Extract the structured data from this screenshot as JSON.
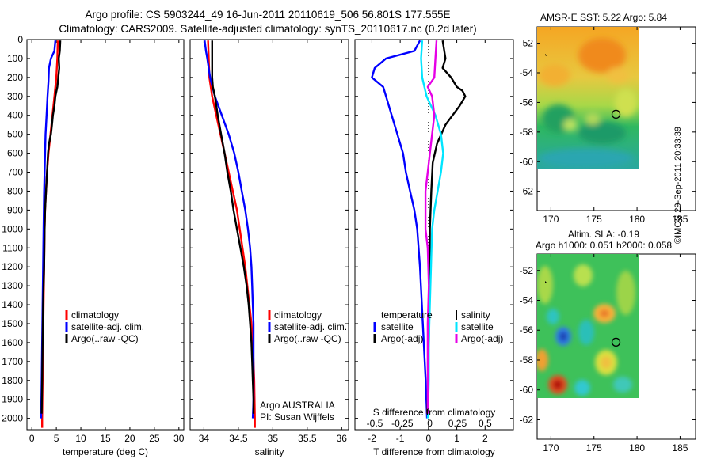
{
  "title_line1": "Argo profile: CS 5903244_49 16-Jun-2011 20110619_506 56.801S 177.555E",
  "title_line2": "Climatology: CARS2009. Satellite-adjusted climatology: synTS_20110617.nc (0.2d later)",
  "credit": "©IMOS 29-Sep-2011 20:33:39",
  "colors": {
    "climatology": "#ff0000",
    "satellite": "#0000ff",
    "argo": "#000000",
    "salinity_satellite": "#00e5ff",
    "salinity_argo": "#e600e6"
  },
  "chart_data": [
    {
      "type": "line",
      "name": "temperature-profile",
      "xlabel": "temperature (deg C)",
      "ylabel": "",
      "xlim": [
        -1,
        31
      ],
      "ylim": [
        2060,
        0
      ],
      "yticks": [
        0,
        100,
        200,
        300,
        400,
        500,
        600,
        700,
        800,
        900,
        1000,
        1100,
        1200,
        1300,
        1400,
        1500,
        1600,
        1700,
        1800,
        1900,
        2000
      ],
      "xticks": [
        0,
        5,
        10,
        15,
        20,
        25,
        30
      ],
      "legend": [
        "climatology",
        "satellite-adj. clim.",
        "Argo(..raw -QC)"
      ],
      "legend_position": "lower-center",
      "series": [
        {
          "name": "climatology",
          "color": "#ff0000",
          "points": [
            [
              5.3,
              5
            ],
            [
              5.2,
              100
            ],
            [
              5,
              200
            ],
            [
              4.6,
              300
            ],
            [
              4.2,
              400
            ],
            [
              3.8,
              500
            ],
            [
              3.4,
              600
            ],
            [
              3.1,
              700
            ],
            [
              2.9,
              800
            ],
            [
              2.7,
              900
            ],
            [
              2.6,
              1000
            ],
            [
              2.5,
              1200
            ],
            [
              2.4,
              1400
            ],
            [
              2.3,
              1600
            ],
            [
              2.2,
              1800
            ],
            [
              2.1,
              2000
            ],
            [
              2.1,
              2050
            ]
          ]
        },
        {
          "name": "satellite-adj. clim.",
          "color": "#0000ff",
          "points": [
            [
              4.8,
              5
            ],
            [
              4.6,
              60
            ],
            [
              3.9,
              100
            ],
            [
              3.5,
              150
            ],
            [
              3.4,
              220
            ],
            [
              3.2,
              300
            ],
            [
              3,
              400
            ],
            [
              2.8,
              500
            ],
            [
              2.7,
              600
            ],
            [
              2.6,
              700
            ],
            [
              2.5,
              800
            ],
            [
              2.4,
              1000
            ],
            [
              2.3,
              1200
            ],
            [
              2.2,
              1400
            ],
            [
              2.1,
              1600
            ],
            [
              2,
              1800
            ],
            [
              1.9,
              2000
            ]
          ]
        },
        {
          "name": "Argo(..raw -QC)",
          "color": "#000000",
          "points": [
            [
              5.8,
              5
            ],
            [
              5.7,
              60
            ],
            [
              5.5,
              100
            ],
            [
              5.6,
              150
            ],
            [
              5.4,
              200
            ],
            [
              5.2,
              250
            ],
            [
              4.8,
              300
            ],
            [
              4.6,
              350
            ],
            [
              4.3,
              400
            ],
            [
              4.1,
              450
            ],
            [
              3.9,
              500
            ],
            [
              3.5,
              550
            ],
            [
              3.3,
              600
            ],
            [
              3.1,
              700
            ],
            [
              2.9,
              800
            ],
            [
              2.7,
              900
            ],
            [
              2.6,
              1000
            ],
            [
              2.5,
              1200
            ],
            [
              2.3,
              1400
            ],
            [
              2.2,
              1600
            ],
            [
              2.1,
              1800
            ],
            [
              2,
              1975
            ]
          ]
        }
      ]
    },
    {
      "type": "line",
      "name": "salinity-profile",
      "xlabel": "salinity",
      "ylabel": "",
      "xlim": [
        33.8,
        36.1
      ],
      "ylim": [
        2060,
        0
      ],
      "xticks": [
        34,
        34.5,
        35,
        35.5,
        36
      ],
      "legend": [
        "climatology",
        "satellite-adj. clim.",
        "Argo(..raw -QC)"
      ],
      "legend_position": "lower-center",
      "annotations": [
        "Argo AUSTRALIA",
        "PI: Susan Wijffels"
      ],
      "series": [
        {
          "name": "climatology",
          "color": "#ff0000",
          "points": [
            [
              34.06,
              5
            ],
            [
              34.07,
              100
            ],
            [
              34.08,
              200
            ],
            [
              34.12,
              300
            ],
            [
              34.18,
              400
            ],
            [
              34.24,
              500
            ],
            [
              34.3,
              600
            ],
            [
              34.36,
              700
            ],
            [
              34.42,
              800
            ],
            [
              34.48,
              900
            ],
            [
              34.52,
              1000
            ],
            [
              34.56,
              1100
            ],
            [
              34.6,
              1200
            ],
            [
              34.63,
              1300
            ],
            [
              34.66,
              1400
            ],
            [
              34.69,
              1500
            ],
            [
              34.71,
              1600
            ],
            [
              34.72,
              1700
            ],
            [
              34.73,
              1800
            ],
            [
              34.735,
              1900
            ],
            [
              34.74,
              2000
            ],
            [
              34.74,
              2050
            ]
          ]
        },
        {
          "name": "satellite-adj. clim.",
          "color": "#0000ff",
          "points": [
            [
              34.01,
              5
            ],
            [
              34.03,
              60
            ],
            [
              34.05,
              100
            ],
            [
              34.09,
              200
            ],
            [
              34.16,
              300
            ],
            [
              34.26,
              400
            ],
            [
              34.36,
              500
            ],
            [
              34.44,
              600
            ],
            [
              34.5,
              700
            ],
            [
              34.55,
              800
            ],
            [
              34.6,
              900
            ],
            [
              34.64,
              1000
            ],
            [
              34.67,
              1100
            ],
            [
              34.69,
              1200
            ],
            [
              34.7,
              1300
            ],
            [
              34.71,
              1400
            ],
            [
              34.72,
              1500
            ],
            [
              34.72,
              1600
            ],
            [
              34.72,
              1700
            ],
            [
              34.72,
              1800
            ],
            [
              34.72,
              1900
            ],
            [
              34.71,
              2000
            ]
          ]
        },
        {
          "name": "Argo(..raw -QC)",
          "color": "#000000",
          "points": [
            [
              34.12,
              5
            ],
            [
              34.12,
              100
            ],
            [
              34.12,
              200
            ],
            [
              34.13,
              250
            ],
            [
              34.16,
              300
            ],
            [
              34.2,
              400
            ],
            [
              34.25,
              500
            ],
            [
              34.3,
              600
            ],
            [
              34.34,
              700
            ],
            [
              34.39,
              800
            ],
            [
              34.43,
              900
            ],
            [
              34.48,
              1000
            ],
            [
              34.53,
              1100
            ],
            [
              34.58,
              1200
            ],
            [
              34.62,
              1300
            ],
            [
              34.65,
              1400
            ],
            [
              34.67,
              1500
            ],
            [
              34.69,
              1600
            ],
            [
              34.7,
              1700
            ],
            [
              34.71,
              1800
            ],
            [
              34.72,
              1900
            ],
            [
              34.72,
              1975
            ]
          ]
        }
      ]
    },
    {
      "type": "line",
      "name": "difference-profile",
      "xlabel": "T difference from climatology",
      "xlabel_top": "S difference from climatology",
      "xlim": [
        -2.6,
        3
      ],
      "ylim": [
        2060,
        0
      ],
      "xticks": [
        -2,
        -1,
        0,
        1,
        2
      ],
      "top_ticks": [
        -0.5,
        -0.25,
        0,
        0.25,
        0.5
      ],
      "top_tick_labels": [
        "-0.5",
        "-0.25",
        "0",
        "0.25",
        "0.5"
      ],
      "legend": [
        "temperature",
        "satellite",
        "Argo(-adj)",
        "salinity",
        "satellite",
        "Argo(-adj)"
      ],
      "legend_position": "lower-center",
      "series": [
        {
          "name": "temperature satellite",
          "color": "#0000ff",
          "points": [
            [
              -0.3,
              5
            ],
            [
              -0.5,
              60
            ],
            [
              -1.5,
              100
            ],
            [
              -1.9,
              150
            ],
            [
              -2.0,
              200
            ],
            [
              -1.6,
              250
            ],
            [
              -1.5,
              300
            ],
            [
              -1.3,
              400
            ],
            [
              -1.1,
              500
            ],
            [
              -0.9,
              600
            ],
            [
              -0.8,
              700
            ],
            [
              -0.65,
              800
            ],
            [
              -0.5,
              900
            ],
            [
              -0.4,
              1000
            ],
            [
              -0.3,
              1200
            ],
            [
              -0.2,
              1500
            ],
            [
              -0.1,
              1800
            ],
            [
              -0.05,
              2000
            ]
          ]
        },
        {
          "name": "temperature Argo(-adj)",
          "color": "#000000",
          "points": [
            [
              0.5,
              5
            ],
            [
              0.6,
              100
            ],
            [
              0.5,
              150
            ],
            [
              0.8,
              200
            ],
            [
              1.0,
              250
            ],
            [
              1.2,
              270
            ],
            [
              1.3,
              300
            ],
            [
              1.1,
              350
            ],
            [
              0.6,
              450
            ],
            [
              0.3,
              550
            ],
            [
              0.15,
              650
            ],
            [
              0.1,
              800
            ],
            [
              0.05,
              1000
            ],
            [
              0.05,
              1200
            ],
            [
              0.02,
              1500
            ],
            [
              0,
              1800
            ],
            [
              -0.05,
              1975
            ]
          ]
        },
        {
          "name": "salinity satellite",
          "color": "#00e5ff",
          "points": [
            [
              -0.07,
              5
            ],
            [
              -0.08,
              100
            ],
            [
              -0.07,
              200
            ],
            [
              -0.03,
              300
            ],
            [
              0.05,
              400
            ],
            [
              0.1,
              500
            ],
            [
              0.12,
              600
            ],
            [
              0.1,
              700
            ],
            [
              0.07,
              800
            ],
            [
              0.04,
              900
            ],
            [
              0.02,
              1000
            ],
            [
              0.01,
              1200
            ],
            [
              0,
              1400
            ],
            [
              -0.01,
              1600
            ],
            [
              -0.01,
              1800
            ],
            [
              -0.02,
              2000
            ]
          ]
        },
        {
          "name": "salinity Argo(-adj)",
          "color": "#e600e6",
          "points": [
            [
              0.06,
              5
            ],
            [
              0.05,
              100
            ],
            [
              0.04,
              200
            ],
            [
              -0.02,
              250
            ],
            [
              0.02,
              300
            ],
            [
              0.04,
              400
            ],
            [
              0.02,
              500
            ],
            [
              0,
              600
            ],
            [
              -0.02,
              700
            ],
            [
              -0.04,
              800
            ],
            [
              -0.04,
              900
            ],
            [
              -0.04,
              1000
            ],
            [
              -0.02,
              1100
            ],
            [
              -0.01,
              1300
            ],
            [
              -0.02,
              1500
            ],
            [
              -0.02,
              1700
            ],
            [
              -0.02,
              1900
            ],
            [
              -0.02,
              1975
            ]
          ]
        }
      ]
    },
    {
      "type": "heatmap",
      "name": "sst-map",
      "title": "AMSR-E SST: 5.22  Argo: 5.84",
      "xlim": [
        168.4,
        186.8
      ],
      "ylim": [
        -63.3,
        -50.9
      ],
      "xticks": [
        170,
        175,
        180,
        185
      ],
      "yticks": [
        -52,
        -54,
        -56,
        -58,
        -60,
        -62
      ],
      "data_extent": {
        "lon": [
          168.4,
          180.5
        ],
        "lat": [
          -60.1,
          -50.9
        ]
      },
      "argo_position": {
        "lon": 177.555,
        "lat": -56.801
      }
    },
    {
      "type": "heatmap",
      "name": "sla-map",
      "title_line1": "Altim. SLA: -0.19",
      "title_line2": "Argo h1000: 0.051 h2000: 0.058",
      "xlim": [
        168.4,
        186.8
      ],
      "ylim": [
        -63.3,
        -50.9
      ],
      "xticks": [
        170,
        175,
        180,
        185
      ],
      "yticks": [
        -52,
        -54,
        -56,
        -58,
        -60,
        -62
      ],
      "data_extent": {
        "lon": [
          168.4,
          180.5
        ],
        "lat": [
          -60.1,
          -50.9
        ]
      },
      "argo_position": {
        "lon": 177.555,
        "lat": -56.801
      }
    }
  ]
}
